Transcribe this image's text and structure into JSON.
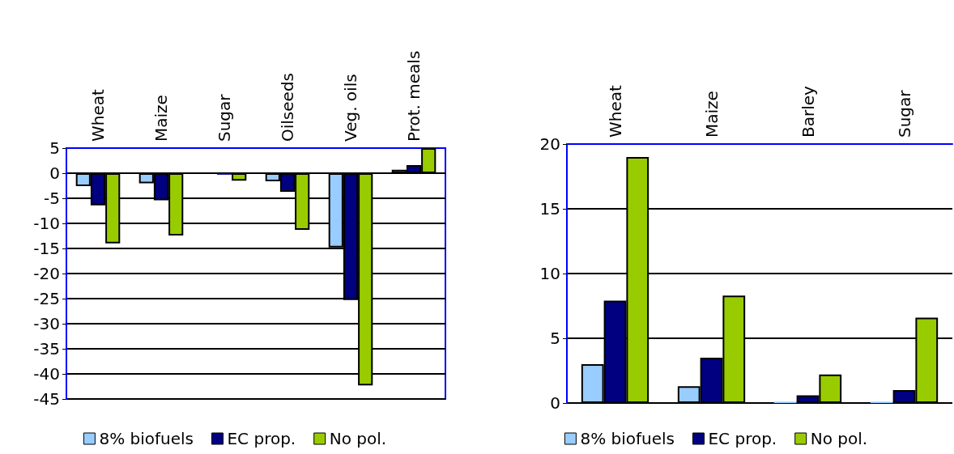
{
  "chart_data": [
    {
      "type": "bar",
      "categories": [
        "Wheat",
        "Maize",
        "Sugar",
        "Oilseeds",
        "Veg. oils",
        "Prot. meals"
      ],
      "series": [
        {
          "name": "8% biofuels",
          "color": "#99ccff",
          "values": [
            -2.6,
            -2.0,
            null,
            -1.6,
            -14.8,
            0.7
          ]
        },
        {
          "name": "EC prop.",
          "color": "#000080",
          "values": [
            -6.4,
            -5.4,
            -0.3,
            -3.7,
            -25.3,
            1.6
          ]
        },
        {
          "name": "No pol.",
          "color": "#99cc00",
          "values": [
            -14,
            -12.4,
            -1.5,
            -11.3,
            -42.3,
            5
          ]
        }
      ],
      "ylim": [
        -45,
        5
      ],
      "yticks": [
        -45,
        -40,
        -35,
        -30,
        -25,
        -20,
        -15,
        -10,
        -5,
        0,
        5
      ],
      "grid": "y",
      "legend": "bottom"
    },
    {
      "type": "bar",
      "categories": [
        "Wheat",
        "Maize",
        "Barley",
        "Sugar"
      ],
      "series": [
        {
          "name": "8% biofuels",
          "color": "#99ccff",
          "values": [
            3.0,
            1.3,
            0.1,
            0.1
          ]
        },
        {
          "name": "EC prop.",
          "color": "#000080",
          "values": [
            7.9,
            3.5,
            0.6,
            1.0
          ]
        },
        {
          "name": "No pol.",
          "color": "#99cc00",
          "values": [
            19.0,
            8.3,
            2.2,
            6.6
          ]
        }
      ],
      "ylim": [
        0,
        20
      ],
      "yticks": [
        0,
        5,
        10,
        15,
        20
      ],
      "grid": "y",
      "legend": "bottom"
    }
  ]
}
